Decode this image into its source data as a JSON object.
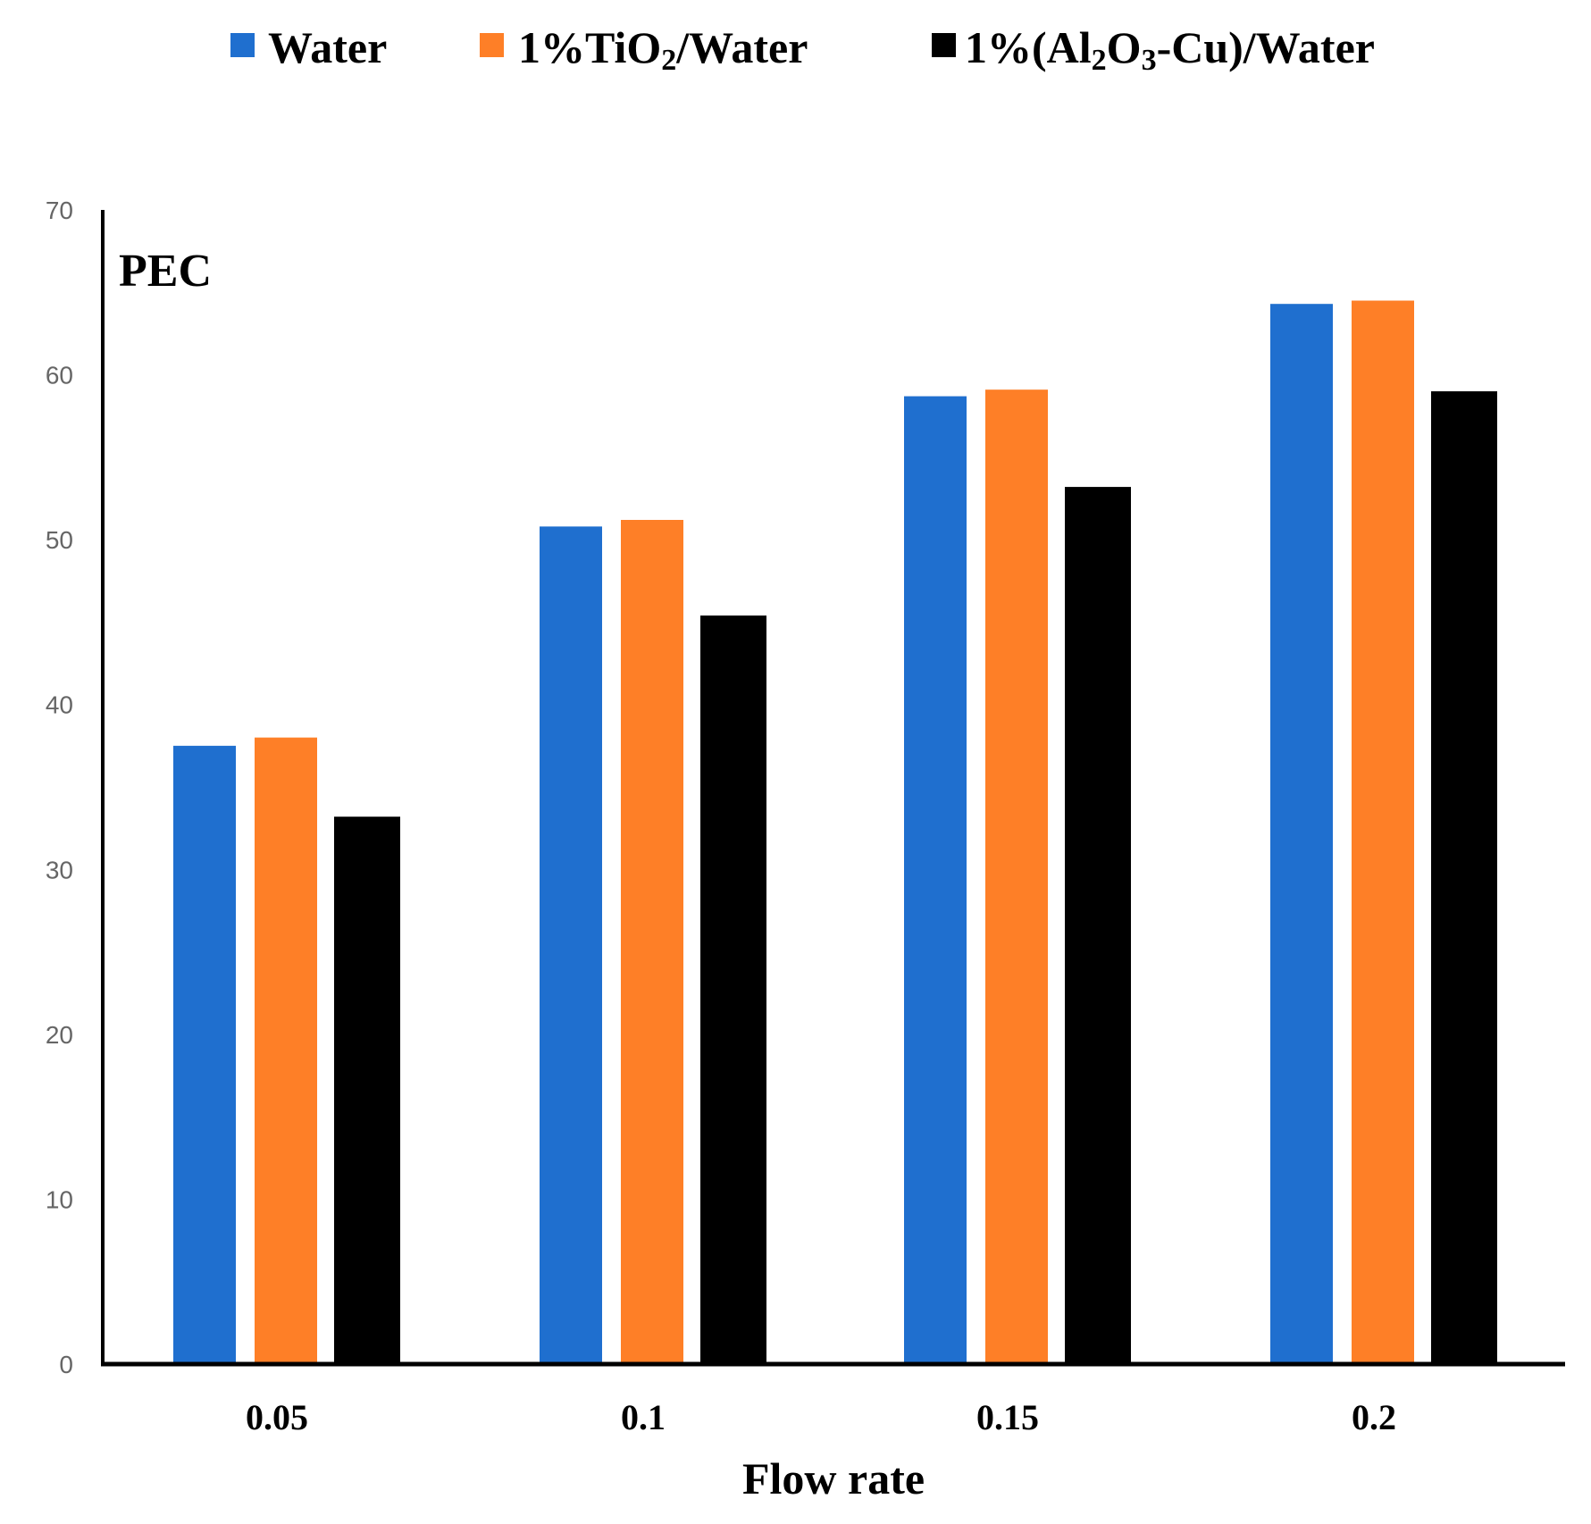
{
  "chart_data": {
    "type": "bar",
    "title": "PEC",
    "xlabel": "Flow rate",
    "ylabel": "",
    "ylim": [
      0,
      70
    ],
    "yticks": [
      "0",
      "10",
      "20",
      "30",
      "40",
      "50",
      "60",
      "70"
    ],
    "categories": [
      "0.05",
      "0.1",
      "0.15",
      "0.2"
    ],
    "legend_position": "top",
    "grid": false,
    "series": [
      {
        "name": "Water",
        "legend_main": "Water",
        "legend_sub": "",
        "legend_tail": "",
        "color": "#1f6fcf",
        "values": [
          37.5,
          50.8,
          58.7,
          64.3
        ]
      },
      {
        "name": "1%TiO2/Water",
        "legend_main": "1%TiO",
        "legend_sub": "2",
        "legend_tail": "/Water",
        "color": "#fe7f27",
        "values": [
          38.0,
          51.2,
          59.1,
          64.5
        ]
      },
      {
        "name": "1%(Al2O3-Cu)/Water",
        "legend_main": "1%(Al",
        "legend_sub": "2",
        "legend_mid": "O",
        "legend_sub2": "3",
        "legend_tail": "-Cu)/Water",
        "color": "#000000",
        "values": [
          33.2,
          45.4,
          53.2,
          59.0
        ]
      }
    ]
  }
}
